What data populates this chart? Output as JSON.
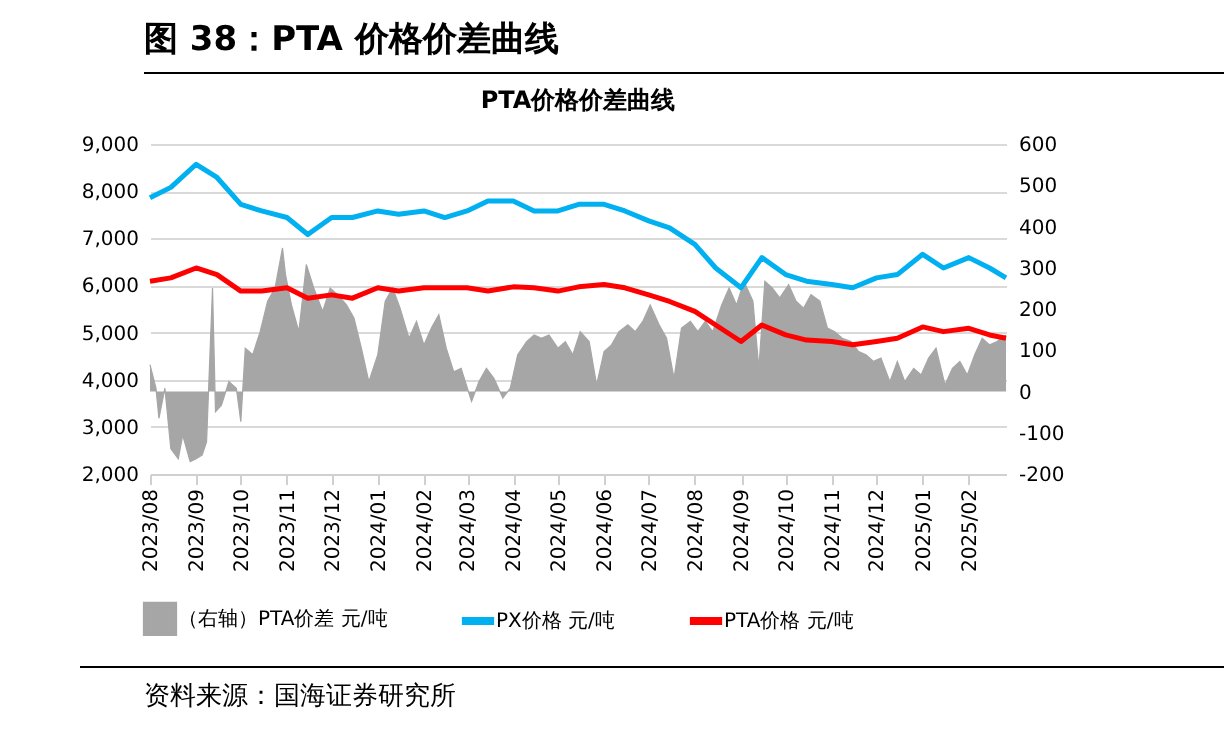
{
  "chart_data": {
    "type": "line",
    "title": "图 38：PTA 价格价差曲线",
    "subtitle": "PTA价格价差曲线",
    "xlim": [
      "2023-08-01",
      "2025-02-26"
    ],
    "xticks": [
      {
        "value": "2023-08",
        "label": "2023/08"
      },
      {
        "value": "2023-09",
        "label": "2023/09"
      },
      {
        "value": "2023-10",
        "label": "2023/10"
      },
      {
        "value": "2023-11",
        "label": "2023/11"
      },
      {
        "value": "2023-12",
        "label": "2023/12"
      },
      {
        "value": "2024-01",
        "label": "2024/01"
      },
      {
        "value": "2024-02",
        "label": "2024/02"
      },
      {
        "value": "2024-03",
        "label": "2024/03"
      },
      {
        "value": "2024-04",
        "label": "2024/04"
      },
      {
        "value": "2024-05",
        "label": "2024/05"
      },
      {
        "value": "2024-06",
        "label": "2024/06"
      },
      {
        "value": "2024-07",
        "label": "2024/07"
      },
      {
        "value": "2024-08",
        "label": "2024/08"
      },
      {
        "value": "2024-09",
        "label": "2024/09"
      },
      {
        "value": "2024-10",
        "label": "2024/10"
      },
      {
        "value": "2024-11",
        "label": "2024/11"
      },
      {
        "value": "2024-12",
        "label": "2024/12"
      },
      {
        "value": "2025-01",
        "label": "2025/01"
      },
      {
        "value": "2025-02",
        "label": "2025/02"
      }
    ],
    "ylim": [
      2000,
      9000
    ],
    "yticks": [
      {
        "value": 2000,
        "label": "2,000"
      },
      {
        "value": 3000,
        "label": "3,000"
      },
      {
        "value": 4000,
        "label": "4,000"
      },
      {
        "value": 5000,
        "label": "5,000"
      },
      {
        "value": 6000,
        "label": "6,000"
      },
      {
        "value": 7000,
        "label": "7,000"
      },
      {
        "value": 8000,
        "label": "8,000"
      },
      {
        "value": 9000,
        "label": "9,000"
      }
    ],
    "y2lim": [
      -200,
      600
    ],
    "y2ticks": [
      -200,
      -100,
      0,
      100,
      200,
      300,
      400,
      500,
      600
    ],
    "grid": "y",
    "legend": "bottom",
    "series": [
      {
        "name": "（右轴）PTA价差 元/吨",
        "type": "area",
        "axis": "y2",
        "color": "#a6a6a6",
        "x": [
          "2023-08-01",
          "2023-08-05",
          "2023-08-07",
          "2023-08-11",
          "2023-08-15",
          "2023-08-20",
          "2023-08-23",
          "2023-08-28",
          "2023-09-01",
          "2023-09-05",
          "2023-09-08",
          "2023-09-12",
          "2023-09-14",
          "2023-09-18",
          "2023-09-23",
          "2023-09-28",
          "2023-10-01",
          "2023-10-04",
          "2023-10-09",
          "2023-10-14",
          "2023-10-19",
          "2023-10-24",
          "2023-10-29",
          "2023-10-31",
          "2023-11-04",
          "2023-11-09",
          "2023-11-14",
          "2023-11-19",
          "2023-11-25",
          "2023-11-30",
          "2023-12-05",
          "2023-12-11",
          "2023-12-16",
          "2023-12-21",
          "2023-12-26",
          "2024-01-01",
          "2024-01-06",
          "2024-01-11",
          "2024-01-16",
          "2024-01-22",
          "2024-01-27",
          "2024-02-01",
          "2024-02-06",
          "2024-02-11",
          "2024-02-16",
          "2024-02-21",
          "2024-02-26",
          "2024-03-04",
          "2024-03-09",
          "2024-03-14",
          "2024-03-19",
          "2024-03-25",
          "2024-03-30",
          "2024-04-04",
          "2024-04-10",
          "2024-04-15",
          "2024-04-20",
          "2024-04-25",
          "2024-05-01",
          "2024-05-06",
          "2024-05-11",
          "2024-05-16",
          "2024-05-22",
          "2024-05-27",
          "2024-06-01",
          "2024-06-06",
          "2024-06-11",
          "2024-06-17",
          "2024-06-22",
          "2024-06-27",
          "2024-07-02",
          "2024-07-08",
          "2024-07-13",
          "2024-07-18",
          "2024-07-23",
          "2024-07-29",
          "2024-08-03",
          "2024-08-08",
          "2024-08-13",
          "2024-08-19",
          "2024-08-24",
          "2024-08-29",
          "2024-09-03",
          "2024-09-09",
          "2024-09-13",
          "2024-09-17",
          "2024-09-22",
          "2024-09-27",
          "2024-10-03",
          "2024-10-08",
          "2024-10-13",
          "2024-10-18",
          "2024-10-24",
          "2024-10-29",
          "2024-11-03",
          "2024-11-08",
          "2024-11-14",
          "2024-11-19",
          "2024-11-24",
          "2024-11-29",
          "2024-12-04",
          "2024-12-10",
          "2024-12-15",
          "2024-12-20",
          "2024-12-26",
          "2024-12-31",
          "2025-01-05",
          "2025-01-10",
          "2025-01-16",
          "2025-01-21",
          "2025-01-26",
          "2025-01-31",
          "2025-02-05",
          "2025-02-10",
          "2025-02-15",
          "2025-02-20",
          "2025-02-26"
        ],
        "values": [
          65,
          8,
          -65,
          8,
          -139,
          -163,
          -106,
          -170,
          -163,
          -154,
          -122,
          251,
          -49,
          -33,
          24,
          8,
          -73,
          105,
          89,
          145,
          219,
          251,
          348,
          284,
          210,
          145,
          308,
          251,
          194,
          251,
          235,
          210,
          178,
          105,
          24,
          89,
          219,
          251,
          202,
          129,
          170,
          113,
          154,
          186,
          105,
          48,
          56,
          -24,
          24,
          56,
          32,
          -16,
          8,
          89,
          121,
          137,
          129,
          137,
          105,
          121,
          89,
          145,
          121,
          16,
          97,
          113,
          145,
          162,
          145,
          170,
          210,
          162,
          129,
          32,
          154,
          170,
          145,
          170,
          145,
          210,
          251,
          210,
          267,
          219,
          56,
          267,
          251,
          227,
          259,
          219,
          202,
          235,
          219,
          154,
          145,
          129,
          121,
          97,
          89,
          73,
          81,
          24,
          73,
          24,
          56,
          40,
          81,
          105,
          16,
          56,
          73,
          40,
          89,
          129,
          113,
          121,
          137
        ]
      },
      {
        "name": "PX价格 元/吨",
        "color": "#00b0f0",
        "x": [
          "2023-08-01",
          "2023-08-15",
          "2023-09-01",
          "2023-09-15",
          "2023-10-01",
          "2023-10-15",
          "2023-11-01",
          "2023-11-15",
          "2023-12-01",
          "2023-12-15",
          "2024-01-01",
          "2024-01-15",
          "2024-02-01",
          "2024-02-15",
          "2024-03-01",
          "2024-03-15",
          "2024-04-01",
          "2024-04-15",
          "2024-05-01",
          "2024-05-15",
          "2024-06-01",
          "2024-06-15",
          "2024-07-01",
          "2024-07-15",
          "2024-08-01",
          "2024-08-15",
          "2024-09-01",
          "2024-09-15",
          "2024-10-01",
          "2024-10-15",
          "2024-11-01",
          "2024-11-15",
          "2024-12-01",
          "2024-12-15",
          "2025-01-01",
          "2025-01-15",
          "2025-02-01",
          "2025-02-15",
          "2025-02-26"
        ],
        "values": [
          7860,
          8080,
          8570,
          8290,
          7720,
          7580,
          7440,
          7080,
          7440,
          7440,
          7580,
          7510,
          7580,
          7440,
          7580,
          7790,
          7790,
          7580,
          7580,
          7720,
          7720,
          7580,
          7370,
          7220,
          6870,
          6370,
          5950,
          6590,
          6230,
          6090,
          6020,
          5950,
          6160,
          6230,
          6660,
          6370,
          6590,
          6370,
          6160
        ]
      },
      {
        "name": "PTA价格 元/吨",
        "color": "#ff0000",
        "x": [
          "2023-08-01",
          "2023-08-15",
          "2023-09-01",
          "2023-09-15",
          "2023-10-01",
          "2023-10-15",
          "2023-11-01",
          "2023-11-15",
          "2023-12-01",
          "2023-12-15",
          "2024-01-01",
          "2024-01-15",
          "2024-02-01",
          "2024-02-15",
          "2024-03-01",
          "2024-03-15",
          "2024-04-01",
          "2024-04-15",
          "2024-05-01",
          "2024-05-15",
          "2024-06-01",
          "2024-06-15",
          "2024-07-01",
          "2024-07-15",
          "2024-08-01",
          "2024-08-15",
          "2024-09-01",
          "2024-09-15",
          "2024-10-01",
          "2024-10-15",
          "2024-11-01",
          "2024-11-15",
          "2024-12-01",
          "2024-12-15",
          "2025-01-01",
          "2025-01-15",
          "2025-02-01",
          "2025-02-15",
          "2025-02-26"
        ],
        "values": [
          6090,
          6160,
          6370,
          6230,
          5880,
          5880,
          5950,
          5730,
          5800,
          5730,
          5950,
          5880,
          5950,
          5950,
          5950,
          5880,
          5970,
          5950,
          5880,
          5970,
          6020,
          5950,
          5800,
          5660,
          5450,
          5160,
          4810,
          5160,
          4950,
          4840,
          4810,
          4740,
          4810,
          4880,
          5120,
          5020,
          5090,
          4950,
          4880
        ]
      }
    ],
    "annotations": [
      "资料来源：国海证券研究所"
    ]
  }
}
